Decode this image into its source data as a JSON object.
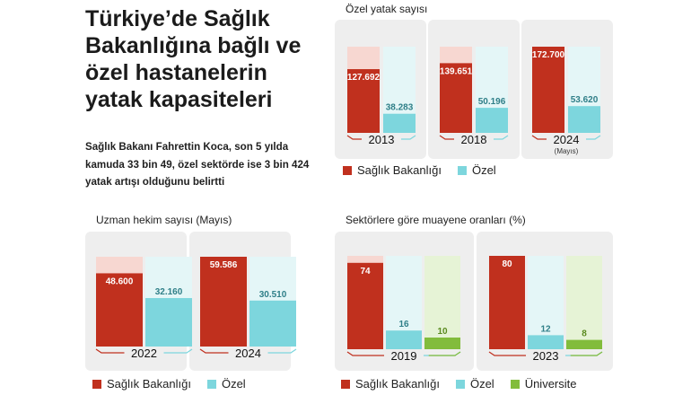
{
  "header": {
    "title": "Türkiye’de Sağlık Bakanlığına bağlı ve özel hastanelerin yatak kapasiteleri",
    "subtitle": "Sağlık Bakanı Fahrettin Koca, son 5 yılda kamuda 33 bin 49, özel sektörde ise 3 bin 424 yatak artışı olduğunu belirtti"
  },
  "colors": {
    "saglik": "#c0301e",
    "saglik_light": "#f7d7d1",
    "ozel": "#7dd6dd",
    "ozel_light": "#e4f6f7",
    "universite": "#82bc3c",
    "universite_light": "#e6f3d6",
    "panel_bg": "#eeeeee"
  },
  "legend1": {
    "saglik": "Sağlık Bakanlığı",
    "ozel": "Özel"
  },
  "legend2": {
    "saglik": "Sağlık Bakanlığı",
    "ozel": "Özel",
    "universite": "Üniversite"
  },
  "chart_data": [
    {
      "id": "yatak",
      "type": "bar",
      "title": "Özel yatak sayısı",
      "categories": [
        "2013",
        "2018",
        "2024"
      ],
      "category_notes": [
        "",
        "",
        "(Mayıs)"
      ],
      "series": [
        {
          "name": "Sağlık Bakanlığı",
          "values": [
            127692,
            139651,
            172700
          ],
          "labels": [
            "127.692",
            "139.651",
            "172.700"
          ]
        },
        {
          "name": "Özel",
          "values": [
            38283,
            50196,
            53620
          ],
          "labels": [
            "38.283",
            "50.196",
            "53.620"
          ]
        }
      ],
      "ylim": [
        0,
        172700
      ]
    },
    {
      "id": "hekim",
      "type": "bar",
      "title": "Uzman hekim sayısı (Mayıs)",
      "categories": [
        "2022",
        "2024"
      ],
      "series": [
        {
          "name": "Sağlık Bakanlığı",
          "values": [
            48600,
            59586
          ],
          "labels": [
            "48.600",
            "59.586"
          ]
        },
        {
          "name": "Özel",
          "values": [
            32160,
            30510
          ],
          "labels": [
            "32.160",
            "30.510"
          ]
        }
      ],
      "ylim": [
        0,
        59586
      ]
    },
    {
      "id": "muayene",
      "type": "bar",
      "title": "Sektörlere göre muayene oranları (%)",
      "categories": [
        "2019",
        "2023"
      ],
      "series": [
        {
          "name": "Sağlık Bakanlığı",
          "values": [
            74,
            80
          ],
          "labels": [
            "74",
            "80"
          ]
        },
        {
          "name": "Özel",
          "values": [
            16,
            12
          ],
          "labels": [
            "16",
            "12"
          ]
        },
        {
          "name": "Üniversite",
          "values": [
            10,
            8
          ],
          "labels": [
            "10",
            "8"
          ]
        }
      ],
      "ylim": [
        0,
        80
      ]
    }
  ]
}
